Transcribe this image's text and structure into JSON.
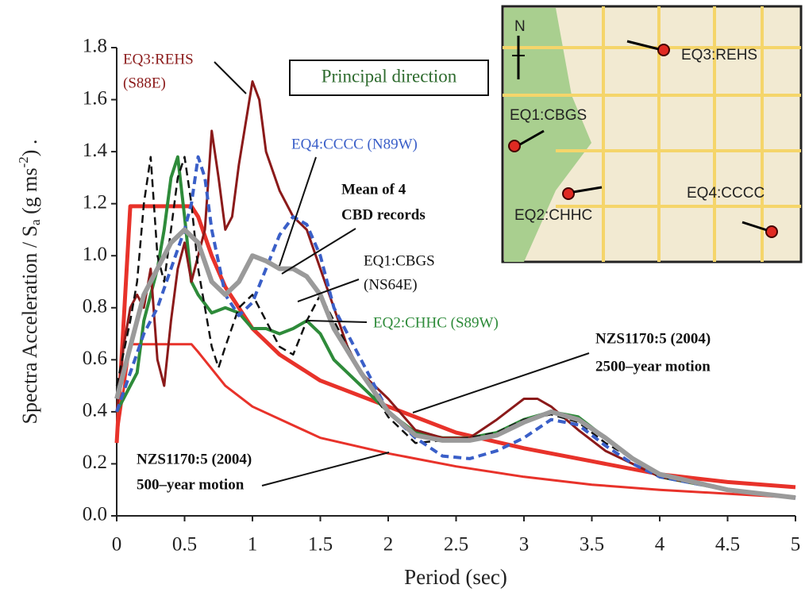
{
  "chart_data": {
    "type": "line",
    "x_label": "Period (sec)",
    "y_label": [
      "Spectra Acceleration / S",
      "a",
      " (g ms",
      "-2",
      ") ."
    ],
    "xlim": [
      0,
      5
    ],
    "xticks": [
      0,
      0.5,
      1,
      1.5,
      2,
      2.5,
      3,
      3.5,
      4,
      4.5,
      5
    ],
    "ylim": [
      0,
      1.8
    ],
    "yticks": [
      {
        "value": 0,
        "label": "0.0"
      },
      0.2,
      0.4,
      0.6,
      0.8,
      {
        "value": 1,
        "label": "1.0"
      },
      1.2,
      1.4,
      1.6,
      1.8
    ],
    "box_label": "Principal direction",
    "series": [
      {
        "label_lines": [
          "EQ3:REHS",
          "(S88E)"
        ],
        "color": "#8b1a1a",
        "style": "solid",
        "x": [
          0,
          0.05,
          0.1,
          0.15,
          0.2,
          0.25,
          0.3,
          0.35,
          0.4,
          0.45,
          0.5,
          0.55,
          0.6,
          0.65,
          0.7,
          0.75,
          0.8,
          0.85,
          0.9,
          1.0,
          1.05,
          1.1,
          1.2,
          1.3,
          1.4,
          1.5,
          1.6,
          1.7,
          1.8,
          2.0,
          2.2,
          2.4,
          2.6,
          2.8,
          3.0,
          3.1,
          3.2,
          3.4,
          3.6,
          3.8,
          4.0,
          4.5,
          5
        ],
        "values": [
          0.4,
          0.65,
          0.8,
          0.85,
          0.8,
          0.95,
          0.6,
          0.5,
          0.75,
          0.95,
          1.05,
          0.9,
          1.0,
          1.1,
          1.48,
          1.3,
          1.1,
          1.15,
          1.35,
          1.67,
          1.6,
          1.4,
          1.25,
          1.15,
          1.1,
          0.95,
          0.8,
          0.65,
          0.55,
          0.45,
          0.33,
          0.3,
          0.3,
          0.37,
          0.45,
          0.45,
          0.42,
          0.33,
          0.25,
          0.2,
          0.15,
          0.1,
          0.07
        ]
      },
      {
        "label_lines": [
          "EQ4:CCCC (N89W)"
        ],
        "color": "#3a5fc8",
        "style": "dashed",
        "x": [
          0,
          0.1,
          0.2,
          0.3,
          0.4,
          0.5,
          0.55,
          0.6,
          0.65,
          0.7,
          0.8,
          0.9,
          1.0,
          1.1,
          1.2,
          1.3,
          1.4,
          1.5,
          1.6,
          1.8,
          2.0,
          2.2,
          2.4,
          2.6,
          2.8,
          3.0,
          3.2,
          3.4,
          3.6,
          3.8,
          4.0,
          4.5,
          5
        ],
        "values": [
          0.4,
          0.55,
          0.7,
          0.8,
          0.95,
          1.1,
          1.2,
          1.38,
          1.3,
          1.1,
          0.85,
          0.77,
          0.82,
          0.95,
          1.08,
          1.15,
          1.12,
          1.0,
          0.8,
          0.6,
          0.4,
          0.3,
          0.23,
          0.22,
          0.25,
          0.3,
          0.37,
          0.35,
          0.27,
          0.2,
          0.15,
          0.1,
          0.07
        ]
      },
      {
        "label_lines": [
          "EQ1:CBGS",
          "(NS64E)"
        ],
        "color": "#111111",
        "style": "dashed",
        "x": [
          0,
          0.1,
          0.15,
          0.2,
          0.25,
          0.3,
          0.35,
          0.4,
          0.45,
          0.5,
          0.55,
          0.6,
          0.7,
          0.75,
          0.8,
          0.9,
          1.0,
          1.1,
          1.2,
          1.3,
          1.4,
          1.5,
          1.6,
          1.8,
          2.0,
          2.2,
          2.4,
          2.6,
          2.8,
          3.0,
          3.2,
          3.4,
          3.6,
          3.8,
          4.0,
          4.5,
          5
        ],
        "values": [
          0.5,
          0.75,
          0.9,
          1.2,
          1.38,
          1.0,
          0.9,
          1.1,
          1.3,
          1.38,
          1.2,
          0.95,
          0.65,
          0.57,
          0.65,
          0.8,
          0.85,
          0.75,
          0.65,
          0.62,
          0.75,
          0.85,
          0.75,
          0.55,
          0.38,
          0.28,
          0.29,
          0.3,
          0.32,
          0.37,
          0.39,
          0.36,
          0.28,
          0.22,
          0.15,
          0.1,
          0.07
        ]
      },
      {
        "label_lines": [
          "EQ2:CHHC (S89W)"
        ],
        "color": "#2e8b3a",
        "style": "solid",
        "x": [
          0,
          0.1,
          0.15,
          0.2,
          0.3,
          0.35,
          0.4,
          0.45,
          0.5,
          0.55,
          0.6,
          0.7,
          0.8,
          0.9,
          1.0,
          1.1,
          1.2,
          1.3,
          1.4,
          1.5,
          1.6,
          1.8,
          2.0,
          2.2,
          2.4,
          2.6,
          2.8,
          3.0,
          3.2,
          3.4,
          3.6,
          3.8,
          4.0,
          4.5,
          5
        ],
        "values": [
          0.4,
          0.5,
          0.55,
          0.75,
          0.95,
          1.1,
          1.3,
          1.38,
          1.15,
          0.9,
          0.85,
          0.78,
          0.8,
          0.78,
          0.72,
          0.72,
          0.7,
          0.72,
          0.75,
          0.7,
          0.6,
          0.5,
          0.4,
          0.32,
          0.3,
          0.3,
          0.32,
          0.37,
          0.4,
          0.38,
          0.3,
          0.22,
          0.15,
          0.1,
          0.07
        ]
      },
      {
        "label_lines": [
          "Mean of 4",
          "CBD records"
        ],
        "color": "#9a9a9a",
        "style": "solid",
        "x": [
          0,
          0.1,
          0.2,
          0.3,
          0.4,
          0.5,
          0.6,
          0.7,
          0.8,
          0.9,
          1.0,
          1.1,
          1.2,
          1.3,
          1.4,
          1.5,
          1.6,
          1.8,
          2.0,
          2.2,
          2.4,
          2.6,
          2.8,
          3.0,
          3.2,
          3.4,
          3.6,
          3.8,
          4.0,
          4.5,
          5
        ],
        "values": [
          0.45,
          0.65,
          0.85,
          0.95,
          1.05,
          1.1,
          1.05,
          0.9,
          0.85,
          0.9,
          1.0,
          0.98,
          0.95,
          0.95,
          0.92,
          0.85,
          0.72,
          0.55,
          0.4,
          0.31,
          0.29,
          0.29,
          0.31,
          0.36,
          0.4,
          0.37,
          0.3,
          0.22,
          0.16,
          0.1,
          0.07
        ]
      },
      {
        "label_lines": [
          "NZS1170:5 (2004)",
          "2500–year motion"
        ],
        "color": "#e8322a",
        "style": "solid",
        "x": [
          0,
          0.1,
          0.55,
          0.6,
          0.7,
          0.8,
          1.0,
          1.2,
          1.5,
          2.0,
          2.5,
          3.0,
          3.5,
          4.0,
          4.5,
          5
        ],
        "values": [
          0.28,
          1.19,
          1.19,
          1.15,
          1.0,
          0.88,
          0.72,
          0.62,
          0.52,
          0.42,
          0.32,
          0.26,
          0.21,
          0.16,
          0.13,
          0.11
        ]
      },
      {
        "label_lines": [
          "NZS1170:5 (2004)",
          "500–year motion"
        ],
        "color": "#e8322a",
        "style": "solid",
        "x": [
          0,
          0.1,
          0.55,
          0.6,
          0.8,
          1.0,
          1.5,
          2.0,
          2.5,
          3.0,
          3.5,
          4.0,
          5
        ],
        "values": [
          0.3,
          0.66,
          0.66,
          0.63,
          0.5,
          0.42,
          0.3,
          0.24,
          0.19,
          0.15,
          0.12,
          0.1,
          0.07
        ]
      }
    ]
  },
  "inset": {
    "north": "N",
    "labels": [
      "EQ3:REHS",
      "EQ1:CBGS",
      "EQ2:CHHC",
      "EQ4:CCCC"
    ]
  }
}
